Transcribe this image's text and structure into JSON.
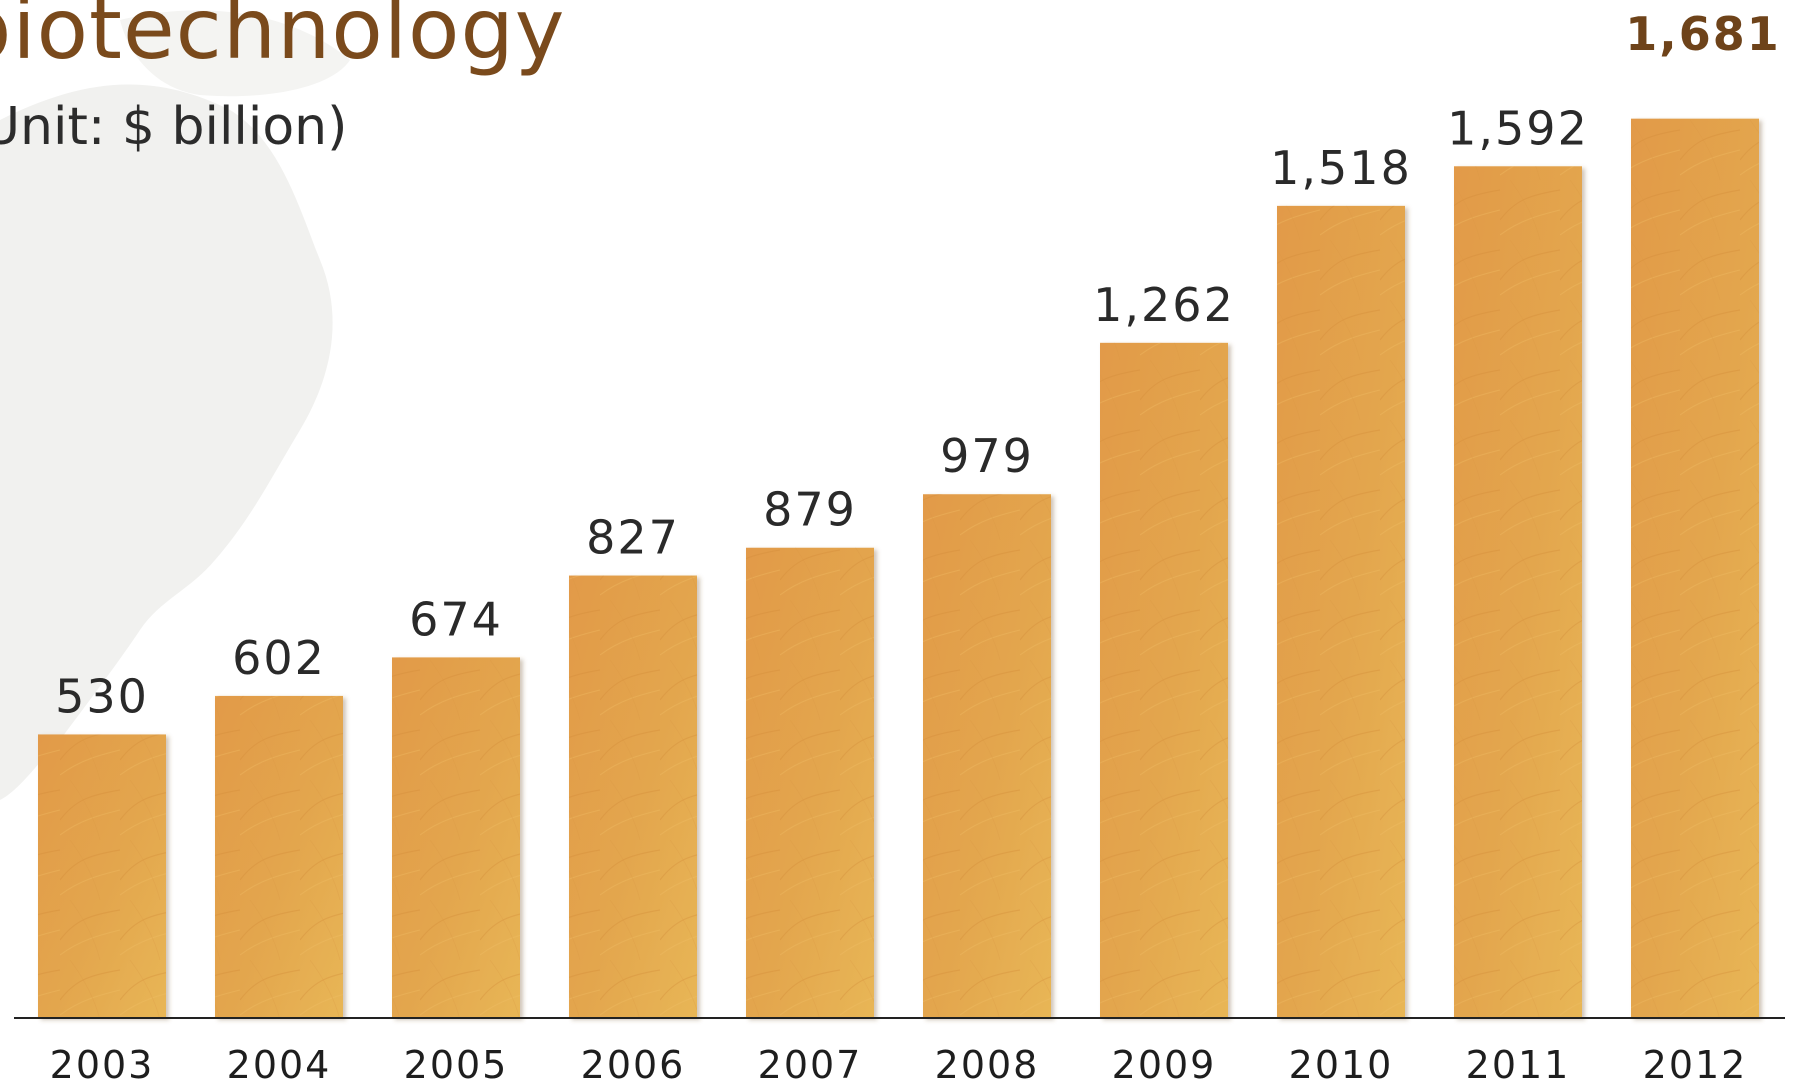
{
  "chart_data": {
    "type": "bar",
    "title": "biotechnology",
    "subtitle": "Unit: $ billion)",
    "categories": [
      "2003",
      "2004",
      "2005",
      "2006",
      "2007",
      "2008",
      "2009",
      "2010",
      "2011",
      "2012"
    ],
    "values": [
      530,
      602,
      674,
      827,
      879,
      979,
      1262,
      1518,
      1592,
      1681
    ],
    "value_labels": [
      "530",
      "602",
      "674",
      "827",
      "879",
      "979",
      "1,262",
      "1,518",
      "1,592",
      "1,681"
    ],
    "highlight_index": 9,
    "ylim": [
      0,
      1700
    ],
    "grid": false,
    "legend": "none",
    "colors": {
      "bar": "#e0a24a",
      "bar_light": "#e9b456",
      "title": "#7a4a1c",
      "highlight_label": "#6e431a",
      "axis": "#222222",
      "map": "#f1f1ef"
    }
  }
}
